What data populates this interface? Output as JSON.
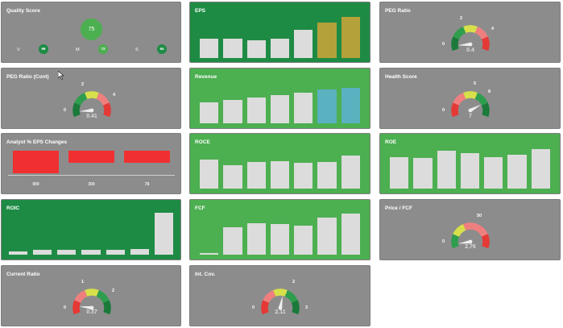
{
  "quality": {
    "title": "Quality Score",
    "score": "75",
    "v_label": "V",
    "v_value": "96",
    "m_label": "M",
    "m_value": "72",
    "s_label": "S",
    "s_value": "94"
  },
  "eps": {
    "title": "EPS",
    "values": [
      0.47,
      0.47,
      0.44,
      0.48,
      0.68,
      0.87,
      1.0
    ],
    "highlight_from": 5,
    "highlight_color": "#b5a13a"
  },
  "peg": {
    "title": "PEG Ratio",
    "min": "0",
    "t1": "2",
    "t2": "4",
    "value": "0.4",
    "pct": 0.07
  },
  "peg_cont": {
    "title": "PEG Ratio (Cont)",
    "min": "0",
    "t1": "2",
    "t2": "4",
    "value": "0.41",
    "pct": 0.07
  },
  "health": {
    "title": "Health Score",
    "min": "0",
    "t1": "5",
    "t2": "8",
    "value": "7",
    "pct": 0.78
  },
  "revenue": {
    "title": "Revenue",
    "values": [
      0.6,
      0.65,
      0.73,
      0.8,
      0.87,
      0.95,
      1.0
    ],
    "highlight_from": 5,
    "highlight_color": "#5ab1c0"
  },
  "analyst": {
    "title": "Analyst % EPS Changes",
    "items": [
      {
        "label": "900",
        "depth": 1.0
      },
      {
        "label": "300",
        "depth": 0.55
      },
      {
        "label": "78",
        "depth": 0.55
      }
    ]
  },
  "roce": {
    "title": "ROCE",
    "values": [
      0.87,
      0.7,
      0.81,
      0.83,
      0.77,
      0.8,
      1.0
    ]
  },
  "roe": {
    "title": "ROE",
    "values": [
      0.8,
      0.77,
      0.95,
      0.9,
      0.8,
      0.85,
      1.0
    ]
  },
  "roic": {
    "title": "ROIC",
    "values": [
      0.07,
      0.11,
      0.12,
      0.12,
      0.12,
      0.13,
      1.0
    ]
  },
  "fcf": {
    "title": "FCF",
    "values": [
      0.03,
      0.63,
      0.72,
      0.7,
      0.67,
      0.85,
      0.95
    ]
  },
  "pfcf": {
    "title": "Price / FCF",
    "min": "0",
    "t1": "50",
    "value": "2.76",
    "pct": 0.05
  },
  "current": {
    "title": "Current Ratio",
    "min": "0",
    "t1": "1",
    "t2": "2",
    "value": "0.37",
    "pct": 0.12
  },
  "intcov": {
    "title": "Int. Cov.",
    "min": "0",
    "t1": "2",
    "t2": "3",
    "value": "2.11",
    "pct": 0.55
  },
  "colors": {
    "green": "#4caf50",
    "dark_green": "#1e8b45",
    "gray": "#8c8c8c",
    "bar": "#dcdcdc",
    "red": "#f03030",
    "gauge_red": "#e53935",
    "gauge_pink": "#ef7f7f",
    "gauge_yellow": "#d7e04a",
    "gauge_green": "#2e9e4e",
    "gauge_dgreen": "#1b7a3a"
  }
}
